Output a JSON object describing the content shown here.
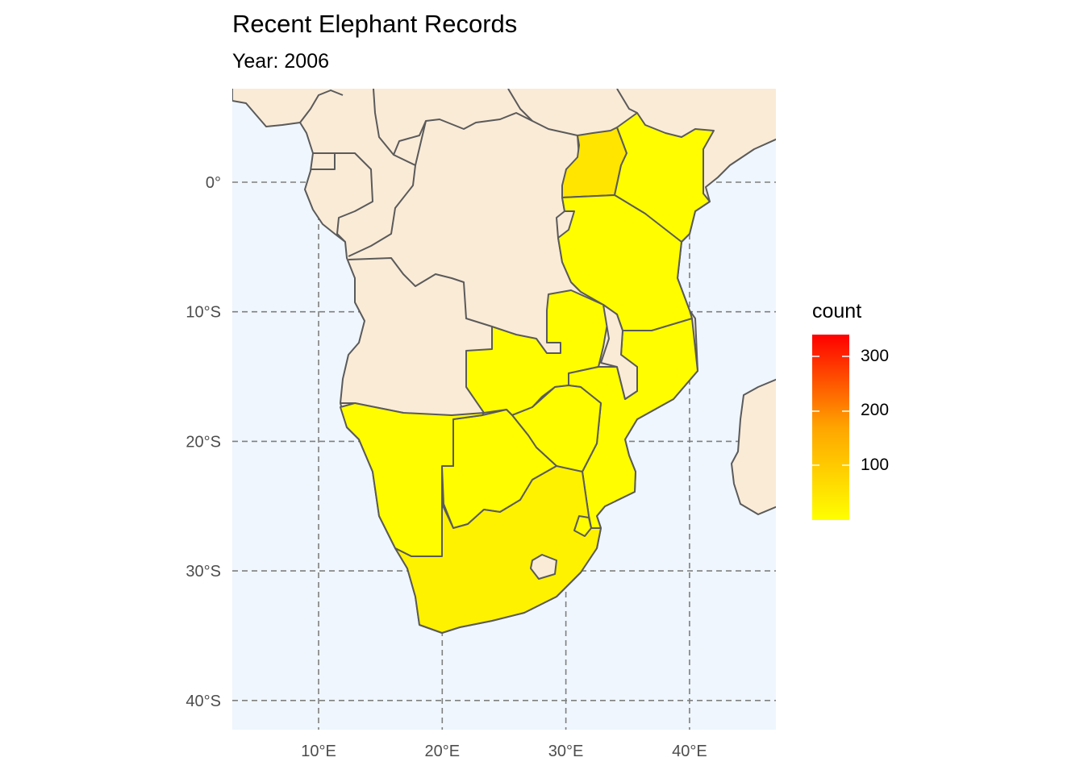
{
  "title": "Recent Elephant Records",
  "subtitle": "Year: 2006",
  "chart_data": {
    "type": "choropleth",
    "title": "Recent Elephant Records",
    "subtitle": "Year: 2006",
    "x_ticks": [
      "10°E",
      "20°E",
      "30°E",
      "40°E"
    ],
    "y_ticks": [
      "0°",
      "10°S",
      "20°S",
      "30°S",
      "40°S"
    ],
    "lon_range": [
      3,
      47
    ],
    "lat_range": [
      -42.3,
      7.2
    ],
    "grid": true,
    "legend": {
      "title": "count",
      "position": "right",
      "ticks": [
        "100",
        "200",
        "300"
      ],
      "range": [
        1,
        340
      ],
      "low_color": "#FFFF00",
      "high_color": "#FF0000"
    },
    "colors": {
      "ocean": "#EFF6FD",
      "land_no_data": "#FAEBD7",
      "border": "#5a5a5a",
      "grid": "#7f7f7f"
    },
    "regions": [
      {
        "country": "Uganda",
        "count": 35
      },
      {
        "country": "Kenya",
        "count": 3
      },
      {
        "country": "Tanzania",
        "count": 3
      },
      {
        "country": "Zambia",
        "count": 3
      },
      {
        "country": "Mozambique",
        "count": 3
      },
      {
        "country": "Zimbabwe",
        "count": 3
      },
      {
        "country": "Botswana",
        "count": 3
      },
      {
        "country": "Namibia",
        "count": 3
      },
      {
        "country": "South Africa",
        "count": 18
      },
      {
        "country": "Swaziland",
        "count": 3
      }
    ]
  }
}
